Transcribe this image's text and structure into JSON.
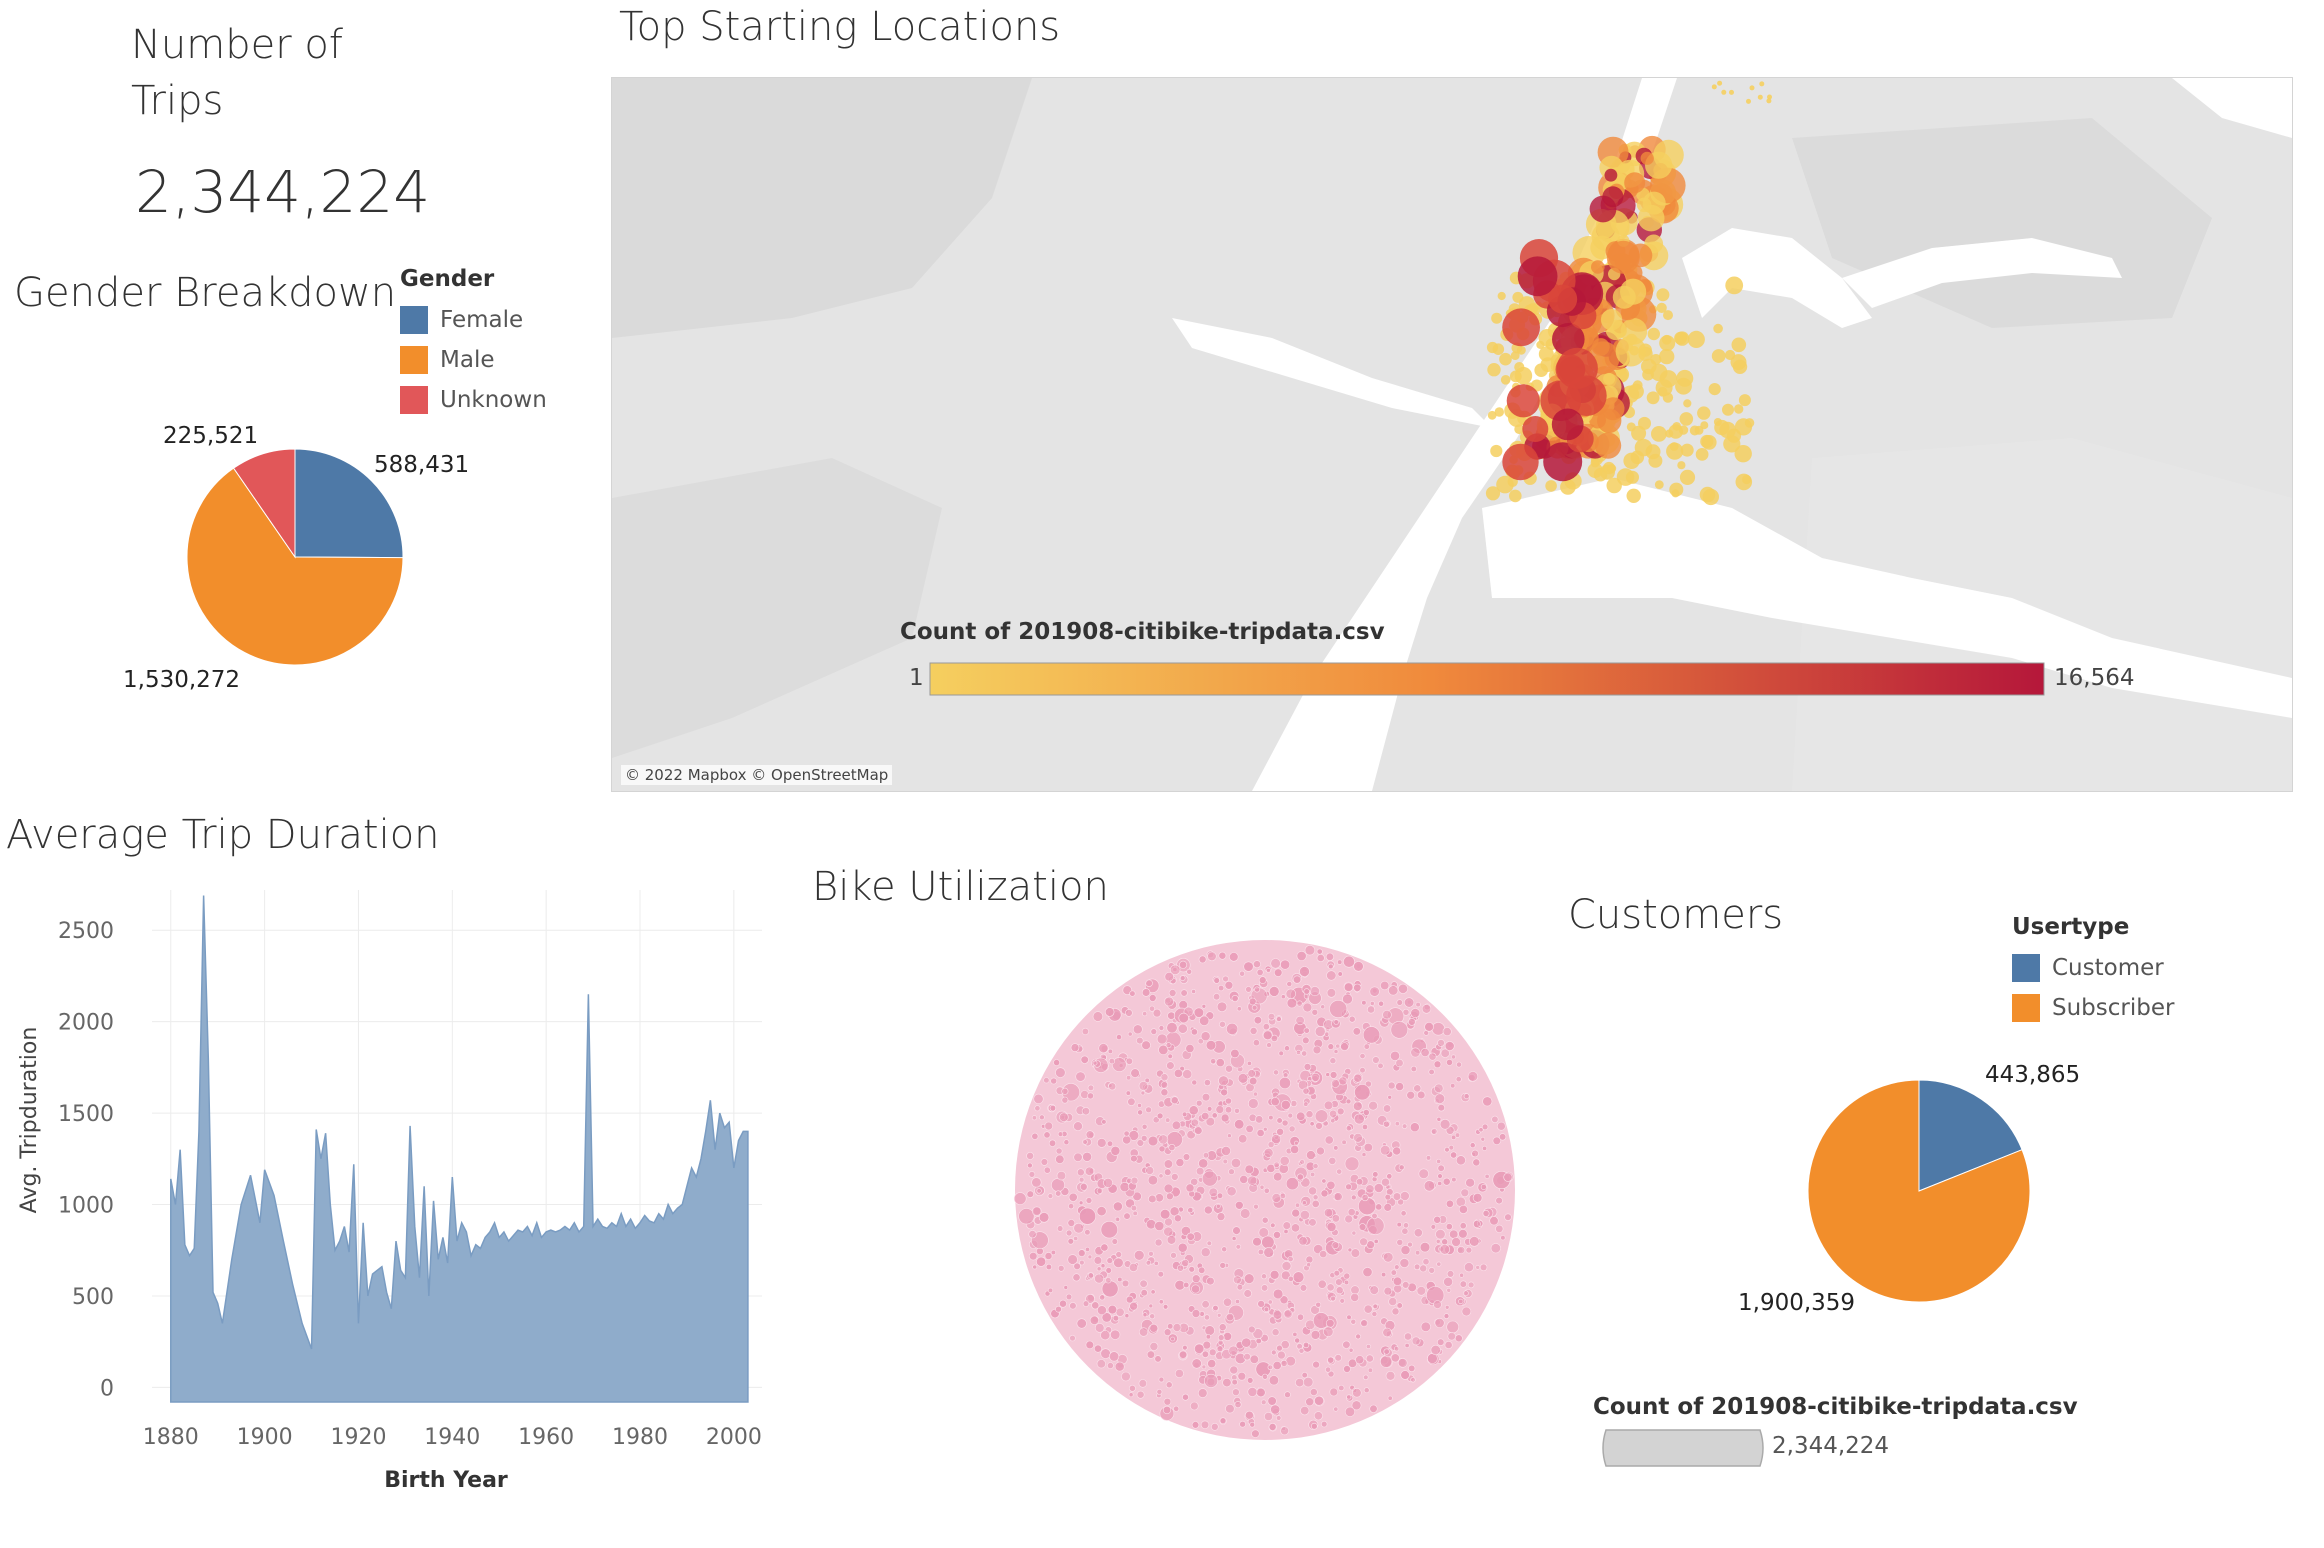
{
  "trips": {
    "title_line1": "Number of",
    "title_line2": "Trips",
    "value": "2,344,224"
  },
  "map": {
    "title": "Top Starting Locations",
    "colorbar_title": "Count of 201908-citibike-tripdata.csv",
    "colorbar_min": "1",
    "colorbar_max": "16,564",
    "attribution": "© 2022 Mapbox © OpenStreetMap",
    "colors": {
      "low": "#f5cf5f",
      "mid": "#f08a3c",
      "high": "#b5173a"
    }
  },
  "gender": {
    "title": "Gender Breakdown",
    "legend_title": "Gender",
    "legend": [
      {
        "label": "Female",
        "color": "#4e79a7"
      },
      {
        "label": "Male",
        "color": "#f28e2b"
      },
      {
        "label": "Unknown",
        "color": "#e15759"
      }
    ]
  },
  "duration": {
    "title": "Average Trip Duration"
  },
  "utilization": {
    "title": "Bike Utilization",
    "color": "#e99bb7"
  },
  "customers": {
    "title": "Customers",
    "legend_title": "Usertype",
    "legend": [
      {
        "label": "Customer",
        "color": "#4e79a7"
      },
      {
        "label": "Subscriber",
        "color": "#f28e2b"
      }
    ],
    "size_legend_title": "Count of 201908-citibike-tripdata.csv",
    "size_legend_value": "2,344,224"
  },
  "chart_data": [
    {
      "type": "pie",
      "name": "gender",
      "categories": [
        "Female",
        "Male",
        "Unknown"
      ],
      "values": [
        588431,
        1530272,
        225521
      ],
      "labels": [
        "588,431",
        "1,530,272",
        "225,521"
      ],
      "colors": [
        "#4e79a7",
        "#f28e2b",
        "#e15759"
      ]
    },
    {
      "type": "area",
      "name": "duration",
      "xlabel": "Birth Year",
      "ylabel": "Avg. Tripduration",
      "xlim": [
        1876,
        2006
      ],
      "ylim": [
        -80,
        2720
      ],
      "xticks": [
        1880,
        1900,
        1920,
        1940,
        1960,
        1980,
        2000
      ],
      "yticks": [
        0,
        500,
        1000,
        1500,
        2000,
        2500
      ],
      "color": "#8faccb",
      "x": [
        1880,
        1881,
        1882,
        1883,
        1884,
        1885,
        1886,
        1887,
        1888,
        1889,
        1890,
        1891,
        1893,
        1895,
        1897,
        1899,
        1900,
        1902,
        1904,
        1906,
        1908,
        1910,
        1911,
        1912,
        1913,
        1914,
        1915,
        1916,
        1917,
        1918,
        1919,
        1920,
        1921,
        1922,
        1923,
        1924,
        1925,
        1926,
        1927,
        1928,
        1929,
        1930,
        1931,
        1932,
        1933,
        1934,
        1935,
        1936,
        1937,
        1938,
        1939,
        1940,
        1941,
        1942,
        1943,
        1944,
        1945,
        1946,
        1947,
        1948,
        1949,
        1950,
        1951,
        1952,
        1953,
        1954,
        1955,
        1956,
        1957,
        1958,
        1959,
        1960,
        1961,
        1962,
        1963,
        1964,
        1965,
        1966,
        1967,
        1968,
        1969,
        1970,
        1971,
        1972,
        1973,
        1974,
        1975,
        1976,
        1977,
        1978,
        1979,
        1980,
        1981,
        1982,
        1983,
        1984,
        1985,
        1986,
        1987,
        1988,
        1989,
        1990,
        1991,
        1992,
        1993,
        1994,
        1995,
        1996,
        1997,
        1998,
        1999,
        2000,
        2001,
        2002,
        2003
      ],
      "y": [
        1140,
        1000,
        1300,
        780,
        720,
        760,
        1400,
        2690,
        1800,
        520,
        460,
        350,
        700,
        1000,
        1160,
        900,
        1190,
        1050,
        800,
        560,
        350,
        210,
        1410,
        1250,
        1390,
        1000,
        750,
        800,
        880,
        740,
        1220,
        350,
        900,
        500,
        620,
        640,
        660,
        520,
        430,
        800,
        640,
        600,
        1430,
        880,
        600,
        1100,
        500,
        1020,
        700,
        820,
        680,
        1150,
        800,
        900,
        850,
        720,
        780,
        760,
        820,
        850,
        900,
        820,
        850,
        800,
        830,
        860,
        850,
        880,
        830,
        900,
        820,
        850,
        860,
        850,
        860,
        880,
        860,
        900,
        850,
        880,
        2150,
        880,
        920,
        880,
        870,
        900,
        880,
        950,
        880,
        920,
        870,
        900,
        940,
        910,
        900,
        950,
        920,
        1000,
        950,
        980,
        1000,
        1100,
        1200,
        1150,
        1250,
        1400,
        1570,
        1300,
        1500,
        1420,
        1450,
        1200,
        1350,
        1400,
        1400
      ],
      "display_x": [
        1880,
        1885,
        1890,
        1895,
        1900,
        1905,
        1910,
        1915,
        1920,
        1925,
        1930,
        1935,
        1940,
        1945,
        1950,
        1955,
        1960,
        1965,
        1970,
        1975,
        1980,
        1985,
        1990,
        1995,
        2000,
        2003
      ]
    },
    {
      "type": "pie",
      "name": "customers",
      "categories": [
        "Customer",
        "Subscriber"
      ],
      "values": [
        443865,
        1900359
      ],
      "labels": [
        "443,865",
        "1,900,359"
      ],
      "colors": [
        "#4e79a7",
        "#f28e2b"
      ]
    }
  ]
}
